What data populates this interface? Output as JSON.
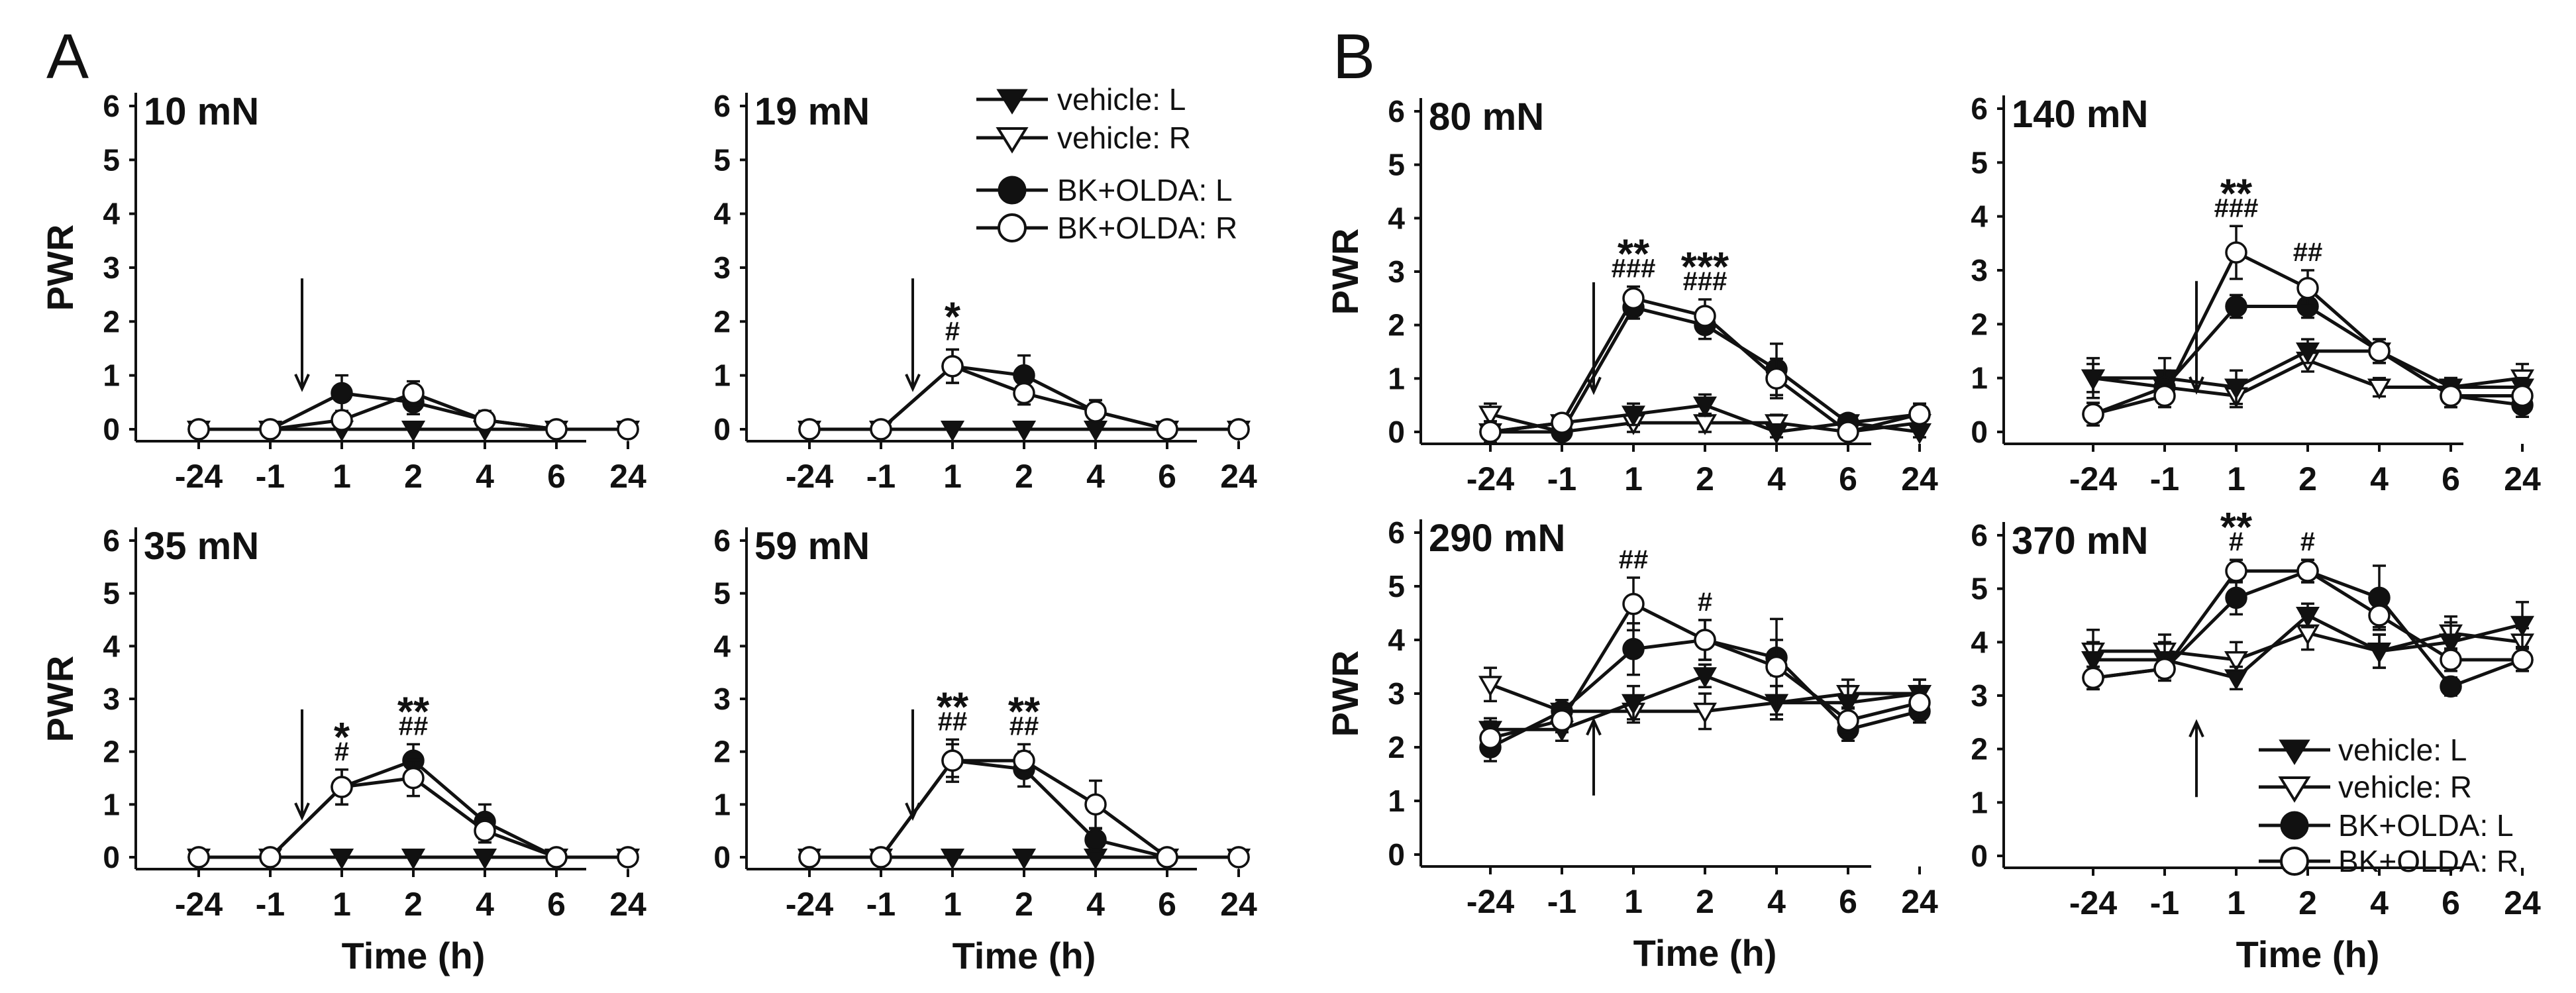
{
  "panel_letters": [
    "A",
    "B"
  ],
  "legend_top": {
    "items": [
      "vehicle: L",
      "vehicle: R",
      "BK+OLDA: L",
      "BK+OLDA: R"
    ]
  },
  "legend_bottom": {
    "items": [
      "vehicle: L",
      "vehicle: R",
      "BK+OLDA: L",
      "BK+OLDA: R"
    ]
  },
  "colors": {
    "ink": "#111111",
    "open_fill": "#ffffff"
  },
  "marker_styles": {
    "vehicle: L": "filled-down-triangle",
    "vehicle: R": "open-down-triangle",
    "BK+OLDA: L": "filled-circle",
    "BK+OLDA: R": "open-circle"
  },
  "chart_data": [
    {
      "type": "line",
      "title": "10 mN",
      "ylabel": "PWR",
      "xlabel": "",
      "categories": [
        "-24",
        "-1",
        "1",
        "2",
        "4",
        "6",
        "24"
      ],
      "ylim": [
        0,
        6
      ],
      "yticks": [
        "0",
        "1",
        "2",
        "3",
        "4",
        "5",
        "6"
      ],
      "arrow": "down",
      "arrow_at": "between -1 and 1",
      "series": [
        {
          "name": "vehicle: L",
          "values": [
            0,
            0,
            0,
            0,
            0,
            0,
            0
          ],
          "err": [
            0,
            0,
            0,
            0,
            0,
            0,
            0
          ]
        },
        {
          "name": "vehicle: R",
          "values": [
            0,
            0,
            0,
            0,
            0,
            0,
            0
          ],
          "err": [
            0,
            0,
            0,
            0,
            0,
            0,
            0
          ]
        },
        {
          "name": "BK+OLDA: L",
          "values": [
            0,
            0,
            0.67,
            0.5,
            0.17,
            0,
            0
          ],
          "err": [
            0,
            0,
            0.33,
            0.22,
            0.17,
            0,
            0
          ]
        },
        {
          "name": "BK+OLDA: R",
          "values": [
            0,
            0,
            0.17,
            0.67,
            0.17,
            0,
            0
          ],
          "err": [
            0,
            0,
            0.17,
            0.22,
            0.17,
            0,
            0
          ]
        }
      ],
      "annotations": []
    },
    {
      "type": "line",
      "title": "19 mN",
      "ylabel": "",
      "xlabel": "",
      "categories": [
        "-24",
        "-1",
        "1",
        "2",
        "4",
        "6",
        "24"
      ],
      "ylim": [
        0,
        6
      ],
      "yticks": [
        "0",
        "1",
        "2",
        "3",
        "4",
        "5",
        "6"
      ],
      "arrow": "down",
      "arrow_at": "between -1 and 1",
      "series": [
        {
          "name": "vehicle: L",
          "values": [
            0,
            0,
            0,
            0,
            0,
            0,
            0
          ],
          "err": [
            0,
            0,
            0,
            0,
            0,
            0,
            0
          ]
        },
        {
          "name": "vehicle: R",
          "values": [
            0,
            0,
            0,
            0,
            0,
            0,
            0
          ],
          "err": [
            0,
            0,
            0,
            0,
            0,
            0,
            0
          ]
        },
        {
          "name": "BK+OLDA: L",
          "values": [
            0,
            0,
            1.17,
            1.0,
            0.33,
            0,
            0
          ],
          "err": [
            0,
            0,
            0.31,
            0.37,
            0.21,
            0,
            0
          ]
        },
        {
          "name": "BK+OLDA: R",
          "values": [
            0,
            0,
            1.17,
            0.67,
            0.33,
            0,
            0
          ],
          "err": [
            0,
            0,
            0.31,
            0.21,
            0.21,
            0,
            0
          ]
        }
      ],
      "annotations": [
        {
          "at": "1",
          "stars": "*",
          "hashes": "#"
        }
      ]
    },
    {
      "type": "line",
      "title": "35 mN",
      "ylabel": "PWR",
      "xlabel": "Time (h)",
      "categories": [
        "-24",
        "-1",
        "1",
        "2",
        "4",
        "6",
        "24"
      ],
      "ylim": [
        0,
        6
      ],
      "yticks": [
        "0",
        "1",
        "2",
        "3",
        "4",
        "5",
        "6"
      ],
      "arrow": "down",
      "arrow_at": "between -1 and 1",
      "series": [
        {
          "name": "vehicle: L",
          "values": [
            0,
            0,
            0,
            0,
            0,
            0,
            0
          ],
          "err": [
            0,
            0,
            0,
            0,
            0,
            0,
            0
          ]
        },
        {
          "name": "vehicle: R",
          "values": [
            0,
            0,
            0,
            0,
            0,
            0,
            0
          ],
          "err": [
            0,
            0,
            0,
            0,
            0,
            0,
            0
          ]
        },
        {
          "name": "BK+OLDA: L",
          "values": [
            0,
            0,
            1.33,
            1.83,
            0.67,
            0,
            0
          ],
          "err": [
            0,
            0,
            0.33,
            0.31,
            0.33,
            0,
            0
          ]
        },
        {
          "name": "BK+OLDA: R",
          "values": [
            0,
            0,
            1.33,
            1.5,
            0.5,
            0,
            0
          ],
          "err": [
            0,
            0,
            0.33,
            0.34,
            0.22,
            0,
            0
          ]
        }
      ],
      "annotations": [
        {
          "at": "1",
          "stars": "*",
          "hashes": "#"
        },
        {
          "at": "2",
          "stars": "**",
          "hashes": "##"
        }
      ]
    },
    {
      "type": "line",
      "title": "59 mN",
      "ylabel": "",
      "xlabel": "Time (h)",
      "categories": [
        "-24",
        "-1",
        "1",
        "2",
        "4",
        "6",
        "24"
      ],
      "ylim": [
        0,
        6
      ],
      "yticks": [
        "0",
        "1",
        "2",
        "3",
        "4",
        "5",
        "6"
      ],
      "arrow": "down",
      "arrow_at": "between -1 and 1",
      "series": [
        {
          "name": "vehicle: L",
          "values": [
            0,
            0,
            0,
            0,
            0,
            0,
            0
          ],
          "err": [
            0,
            0,
            0,
            0,
            0,
            0,
            0
          ]
        },
        {
          "name": "vehicle: R",
          "values": [
            0,
            0,
            0,
            0,
            0,
            0,
            0
          ],
          "err": [
            0,
            0,
            0,
            0,
            0,
            0,
            0
          ]
        },
        {
          "name": "BK+OLDA: L",
          "values": [
            0,
            0,
            1.83,
            1.67,
            0.33,
            0,
            0
          ],
          "err": [
            0,
            0,
            0.31,
            0.33,
            0.21,
            0,
            0
          ]
        },
        {
          "name": "BK+OLDA: R",
          "values": [
            0,
            0,
            1.83,
            1.83,
            1.0,
            0,
            0
          ],
          "err": [
            0,
            0,
            0.4,
            0.31,
            0.45,
            0,
            0
          ]
        }
      ],
      "annotations": [
        {
          "at": "1",
          "stars": "**",
          "hashes": "##"
        },
        {
          "at": "2",
          "stars": "**",
          "hashes": "##"
        }
      ]
    },
    {
      "type": "line",
      "title": "80 mN",
      "ylabel": "PWR",
      "xlabel": "",
      "categories": [
        "-24",
        "-1",
        "1",
        "2",
        "4",
        "6",
        "24"
      ],
      "ylim": [
        0,
        6
      ],
      "yticks": [
        "0",
        "1",
        "2",
        "3",
        "4",
        "5",
        "6"
      ],
      "arrow": "down",
      "arrow_at": "between -1 and 1",
      "series": [
        {
          "name": "vehicle: L",
          "values": [
            0,
            0.17,
            0.33,
            0.5,
            0,
            0.17,
            0
          ],
          "err": [
            0.2,
            0.15,
            0.2,
            0.2,
            0.1,
            0.15,
            0.1
          ]
        },
        {
          "name": "vehicle: R",
          "values": [
            0.33,
            0,
            0.17,
            0.17,
            0.17,
            0,
            0.17
          ],
          "err": [
            0.2,
            0.1,
            0.17,
            0.17,
            0.15,
            0.1,
            0.15
          ]
        },
        {
          "name": "BK+OLDA: L",
          "values": [
            0,
            0,
            2.33,
            2.0,
            1.17,
            0.17,
            0.33
          ],
          "err": [
            0.1,
            0.1,
            0.21,
            0.26,
            0.48,
            0.15,
            0.2
          ]
        },
        {
          "name": "BK+OLDA: R",
          "values": [
            0,
            0.17,
            2.5,
            2.17,
            1.0,
            0,
            0.33
          ],
          "err": [
            0.1,
            0.15,
            0.22,
            0.31,
            0.37,
            0.1,
            0.2
          ]
        }
      ],
      "annotations": [
        {
          "at": "1",
          "stars": "**",
          "hashes": "###"
        },
        {
          "at": "2",
          "stars": "***",
          "hashes": "###"
        }
      ]
    },
    {
      "type": "line",
      "title": "140 mN",
      "ylabel": "",
      "xlabel": "",
      "categories": [
        "-24",
        "-1",
        "1",
        "2",
        "4",
        "6",
        "24"
      ],
      "ylim": [
        0,
        6
      ],
      "yticks": [
        "0",
        "1",
        "2",
        "3",
        "4",
        "5",
        "6"
      ],
      "arrow": "down",
      "arrow_at": "between -1 and 1",
      "series": [
        {
          "name": "vehicle: L",
          "values": [
            1.0,
            1.0,
            0.83,
            1.5,
            1.5,
            0.83,
            0.83
          ],
          "err": [
            0.37,
            0.37,
            0.31,
            0.22,
            0.22,
            0.17,
            0.17
          ]
        },
        {
          "name": "vehicle: R",
          "values": [
            1.0,
            0.83,
            0.67,
            1.33,
            0.83,
            0.83,
            1.0
          ],
          "err": [
            0.26,
            0.31,
            0.21,
            0.21,
            0.17,
            0.17,
            0.26
          ]
        },
        {
          "name": "BK+OLDA: L",
          "values": [
            0.33,
            0.83,
            2.33,
            2.33,
            1.5,
            0.67,
            0.5
          ],
          "err": [
            0.21,
            0.31,
            0.21,
            0.21,
            0.22,
            0.21,
            0.22
          ]
        },
        {
          "name": "BK+OLDA: R",
          "values": [
            0.33,
            0.67,
            3.33,
            2.67,
            1.5,
            0.67,
            0.67
          ],
          "err": [
            0.21,
            0.21,
            0.49,
            0.33,
            0.22,
            0.21,
            0.21
          ]
        }
      ],
      "annotations": [
        {
          "at": "1",
          "stars": "**",
          "hashes": "###"
        },
        {
          "at": "2",
          "stars": "",
          "hashes": "##"
        }
      ]
    },
    {
      "type": "line",
      "title": "290 mN",
      "ylabel": "PWR",
      "xlabel": "Time (h)",
      "categories": [
        "-24",
        "-1",
        "1",
        "2",
        "4",
        "6",
        "24"
      ],
      "ylim": [
        0,
        6
      ],
      "yticks": [
        "0",
        "1",
        "2",
        "3",
        "4",
        "5",
        "6"
      ],
      "arrow": "up",
      "arrow_at": "between -1 and 1",
      "series": [
        {
          "name": "vehicle: L",
          "values": [
            2.33,
            2.33,
            2.83,
            3.33,
            2.83,
            2.83,
            3.0
          ],
          "err": [
            0.21,
            0.21,
            0.31,
            0.21,
            0.31,
            0.31,
            0.26
          ]
        },
        {
          "name": "vehicle: R",
          "values": [
            3.17,
            2.67,
            2.67,
            2.67,
            2.83,
            3.0,
            3.0
          ],
          "err": [
            0.31,
            0.21,
            0.21,
            0.33,
            0.31,
            0.26,
            0.26
          ]
        },
        {
          "name": "BK+OLDA: L",
          "values": [
            2.0,
            2.67,
            3.83,
            4.0,
            3.67,
            2.33,
            2.67
          ],
          "err": [
            0.26,
            0.21,
            0.48,
            0.37,
            0.33,
            0.21,
            0.21
          ]
        },
        {
          "name": "BK+OLDA: R",
          "values": [
            2.17,
            2.5,
            4.67,
            4.0,
            3.5,
            2.5,
            2.83
          ],
          "err": [
            0.31,
            0.22,
            0.49,
            0.37,
            0.89,
            0.22,
            0.31
          ]
        }
      ],
      "annotations": [
        {
          "at": "1",
          "stars": "",
          "hashes": "##"
        },
        {
          "at": "2",
          "stars": "",
          "hashes": "#"
        }
      ]
    },
    {
      "type": "line",
      "title": "370 mN",
      "ylabel": "",
      "xlabel": "Time (h)",
      "categories": [
        "-24",
        "-1",
        "1",
        "2",
        "4",
        "6",
        "24"
      ],
      "ylim": [
        0,
        6
      ],
      "yticks": [
        "0",
        "1",
        "2",
        "3",
        "4",
        "5",
        "6"
      ],
      "arrow": "up",
      "arrow_at": "between -1 and 1",
      "series": [
        {
          "name": "vehicle: L",
          "values": [
            3.67,
            3.67,
            3.33,
            4.5,
            3.83,
            4.0,
            4.33
          ],
          "err": [
            0.33,
            0.33,
            0.21,
            0.22,
            0.31,
            0.37,
            0.42
          ]
        },
        {
          "name": "vehicle: R",
          "values": [
            3.83,
            3.83,
            3.67,
            4.17,
            3.83,
            4.17,
            4.0
          ],
          "err": [
            0.4,
            0.31,
            0.33,
            0.31,
            0.31,
            0.31,
            0.26
          ]
        },
        {
          "name": "BK+OLDA: L",
          "values": [
            3.33,
            3.5,
            4.83,
            5.33,
            4.83,
            3.17,
            3.67
          ],
          "err": [
            0.21,
            0.22,
            0.31,
            0.21,
            0.6,
            0.17,
            0.21
          ]
        },
        {
          "name": "BK+OLDA: R",
          "values": [
            3.33,
            3.5,
            5.33,
            5.33,
            4.5,
            3.67,
            3.67
          ],
          "err": [
            0.21,
            0.22,
            0.21,
            0.21,
            0.22,
            0.21,
            0.21
          ]
        }
      ],
      "annotations": [
        {
          "at": "1",
          "stars": "**",
          "hashes": "#"
        },
        {
          "at": "2",
          "stars": "",
          "hashes": "#"
        }
      ]
    }
  ]
}
